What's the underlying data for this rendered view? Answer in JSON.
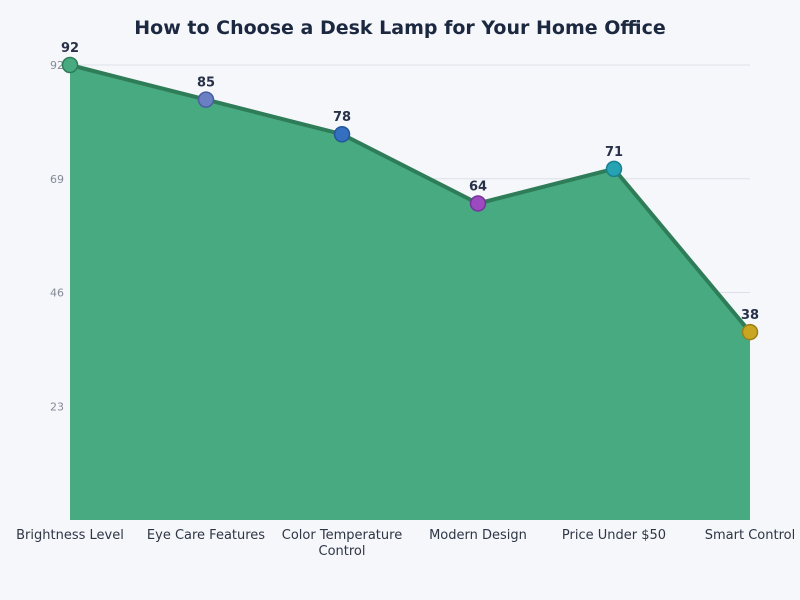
{
  "chart_data": {
    "type": "area",
    "title": "How to Choose a Desk Lamp for Your Home Office",
    "xlabel": "",
    "ylabel": "",
    "categories": [
      "Brightness Level",
      "Eye Care Features",
      "Color Temperature Control",
      "Modern Design",
      "Price Under $50",
      "Smart Control"
    ],
    "category_lines": [
      [
        "Brightness Level"
      ],
      [
        "Eye Care Features"
      ],
      [
        "Color Temperature",
        "Control"
      ],
      [
        "Modern Design"
      ],
      [
        "Price Under $50"
      ],
      [
        "Smart Control"
      ]
    ],
    "values": [
      92,
      85,
      78,
      64,
      71,
      38
    ],
    "value_labels": [
      "92",
      "85",
      "78",
      "64",
      "71",
      "38"
    ],
    "yticks": [
      23,
      46,
      69,
      92
    ],
    "ytick_labels": [
      "23",
      "46",
      "69",
      "92"
    ],
    "ylim": [
      0,
      92
    ],
    "grid": true,
    "legend": null,
    "colors": {
      "background": "#f5f7fb",
      "area_fill": "#47aa81",
      "line": "#2e7d58",
      "gridline": "#dde0e6",
      "title": "#1c2840",
      "marker_colors": [
        "#47aa81",
        "#6a80c2",
        "#3570c0",
        "#9b4bbf",
        "#25a3b3",
        "#c9a622"
      ],
      "marker_strokes": [
        "#2e7d58",
        "#4a5ea0",
        "#24559a",
        "#76339a",
        "#1a7f8e",
        "#9c7f14"
      ]
    }
  }
}
